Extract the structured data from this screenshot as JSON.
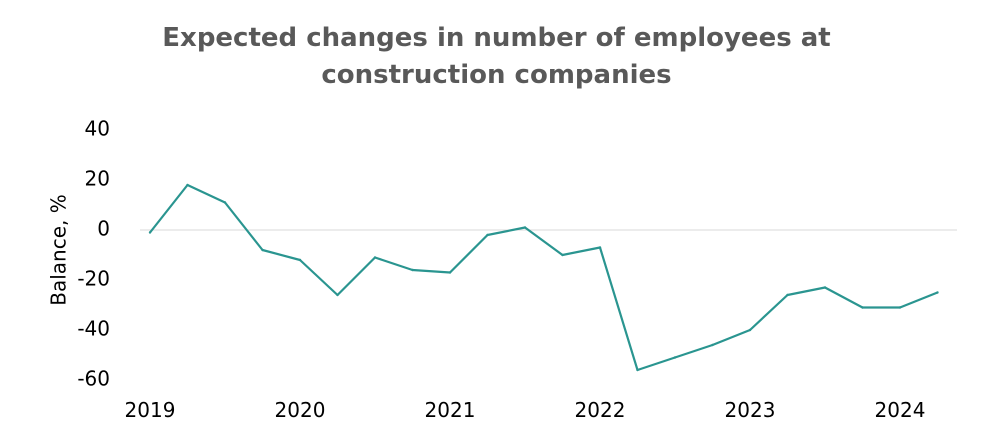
{
  "chart_data": {
    "type": "line",
    "title_lines": [
      "Expected changes in number of employees at",
      "construction companies"
    ],
    "xlabel": "",
    "ylabel": "Balance, %",
    "ylim": [
      -60,
      40
    ],
    "yticks": [
      "-60",
      "-40",
      "-20",
      "0",
      "20",
      "40"
    ],
    "grid": false,
    "x_tick_labels": [
      "2019",
      "2020",
      "2021",
      "2022",
      "2023",
      "2024"
    ],
    "x": [
      "2019 Q1",
      "2019 Q2",
      "2019 Q3",
      "2019 Q4",
      "2020 Q1",
      "2020 Q2",
      "2020 Q3",
      "2020 Q4",
      "2021 Q1",
      "2021 Q2",
      "2021 Q3",
      "2021 Q4",
      "2022 Q1",
      "2022 Q2",
      "2022 Q3",
      "2022 Q4",
      "2023 Q1",
      "2023 Q2",
      "2023 Q3",
      "2023 Q4",
      "2024 Q1",
      "2024 Q2"
    ],
    "series": [
      {
        "color": "#2a9590",
        "values": [
          -1,
          18,
          11,
          -8,
          -12,
          -26,
          -11,
          -16,
          -17,
          -2,
          1,
          -10,
          -7,
          -56,
          -51,
          -46,
          -40,
          -26,
          -23,
          -31,
          -31,
          -25
        ]
      }
    ]
  }
}
